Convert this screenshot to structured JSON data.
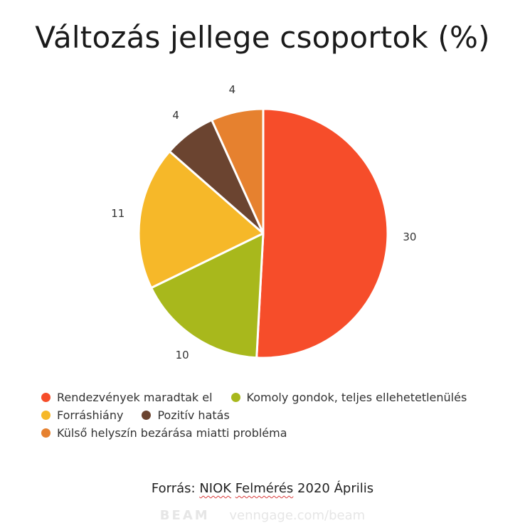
{
  "chart_data": {
    "type": "pie",
    "title": "Változás jellege csoportok (%)",
    "start_angle_deg": 0,
    "direction": "clockwise",
    "legend_position": "bottom",
    "slices": [
      {
        "label": "Rendezvények maradtak el",
        "value": 30,
        "color": "#f64d2a"
      },
      {
        "label": "Komoly gondok, teljes ellehetetlenülés",
        "value": 10,
        "color": "#a8b81c"
      },
      {
        "label": "Forráshiány",
        "value": 11,
        "color": "#f6b829"
      },
      {
        "label": "Pozitív hatás",
        "value": 4,
        "color": "#6b4430"
      },
      {
        "label": "Külső helyszín bezárása miatti probléma",
        "value": 4,
        "color": "#e6812f"
      }
    ],
    "legend_rows": [
      [
        0,
        1
      ],
      [
        2,
        3
      ],
      [
        4
      ]
    ]
  },
  "source": {
    "label": "Forrás:",
    "org": "NIOK",
    "word": "Felmérés",
    "date": "2020 Április"
  },
  "watermark": {
    "brand": "BEAM",
    "url": "venngage.com/beam"
  }
}
